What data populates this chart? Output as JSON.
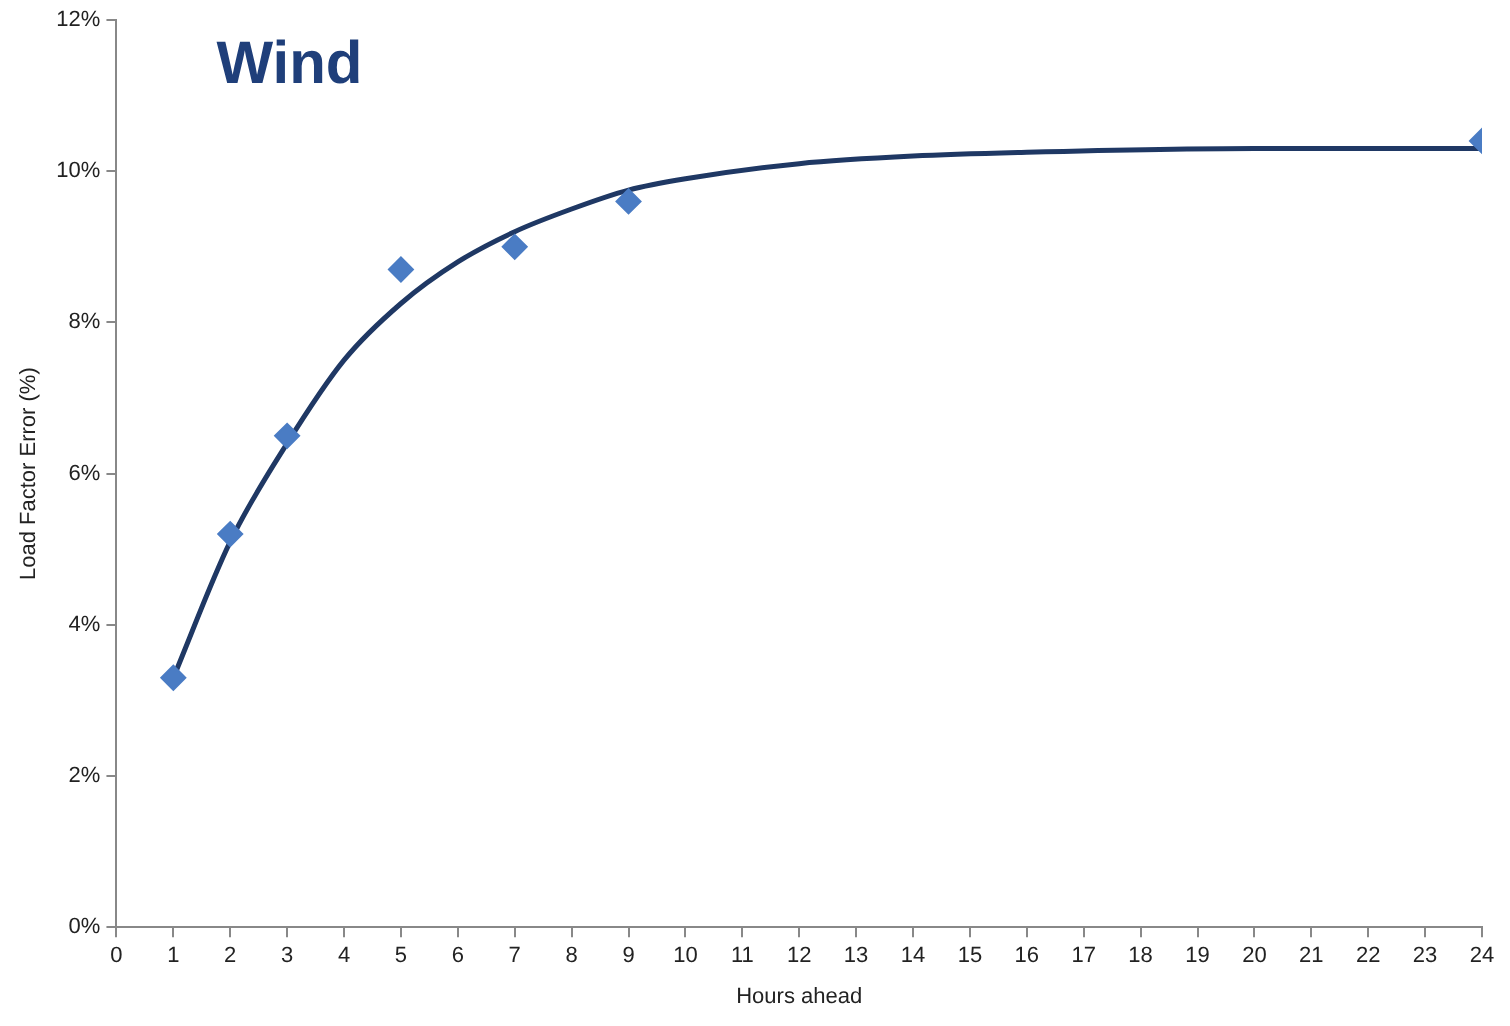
{
  "chart_data": {
    "type": "scatter",
    "title": "Wind",
    "xlabel": "Hours ahead",
    "ylabel": "Load Factor Error (%)",
    "series": [
      {
        "type": "line",
        "color": "#1f3864",
        "marker": "none",
        "x": [
          1,
          2,
          3,
          4,
          5,
          6,
          7,
          8,
          9,
          10,
          12,
          14,
          16,
          20,
          24
        ],
        "values": [
          3.3,
          5.1,
          6.4,
          7.5,
          8.25,
          8.8,
          9.2,
          9.5,
          9.75,
          9.9,
          10.1,
          10.2,
          10.25,
          10.3,
          10.3
        ]
      },
      {
        "type": "scatter",
        "color": "#4a7cc4",
        "marker": "diamond",
        "x": [
          1,
          2,
          3,
          5,
          7,
          9,
          24
        ],
        "values": [
          3.3,
          5.2,
          6.5,
          8.7,
          9.0,
          9.6,
          10.4
        ]
      }
    ],
    "xlim": [
      0,
      24
    ],
    "xticks": [
      0,
      1,
      2,
      3,
      4,
      5,
      6,
      7,
      8,
      9,
      10,
      11,
      12,
      13,
      14,
      15,
      16,
      17,
      18,
      19,
      20,
      21,
      22,
      23,
      24
    ],
    "ylim": [
      0,
      12
    ],
    "yticks": [
      {
        "value": 0,
        "label": "0%"
      },
      {
        "value": 2,
        "label": "2%"
      },
      {
        "value": 4,
        "label": "4%"
      },
      {
        "value": 6,
        "label": "6%"
      },
      {
        "value": 8,
        "label": "8%"
      },
      {
        "value": 10,
        "label": "10%"
      },
      {
        "value": 12,
        "label": "12%"
      }
    ],
    "grid": false,
    "legend": false
  }
}
